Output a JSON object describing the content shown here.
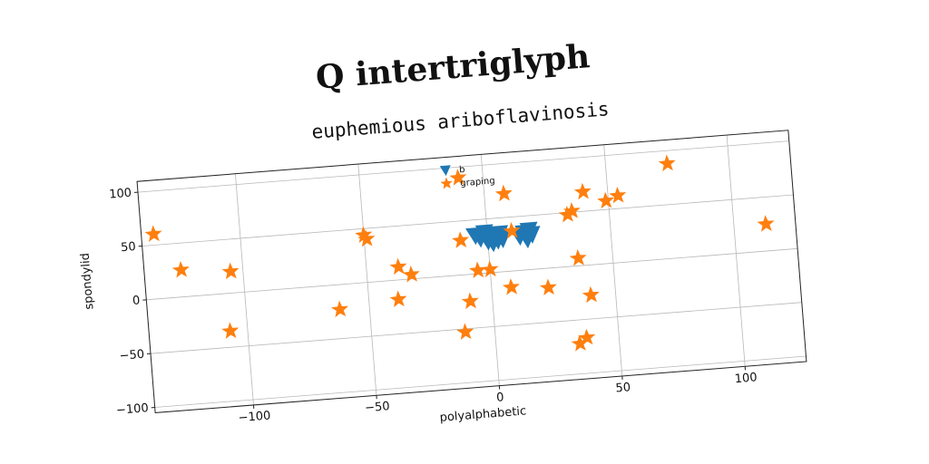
{
  "suptitle": "Q intertriglyph",
  "chart_data": {
    "type": "scatter",
    "title": "euphemious ariboflavinosis",
    "xlabel": "polyalphabetic",
    "ylabel": "spondylid",
    "xlim": [
      -140,
      125
    ],
    "ylim": [
      -105,
      110
    ],
    "xticks": [
      -100,
      -50,
      0,
      50,
      100
    ],
    "yticks": [
      -100,
      -50,
      0,
      50,
      100
    ],
    "grid": true,
    "legend_position": "top-center",
    "series": [
      {
        "name": "b",
        "marker": "triangle-down",
        "color": "#1f77b4",
        "points": [
          [
            -5,
            36
          ],
          [
            -3,
            33
          ],
          [
            -1,
            38
          ],
          [
            0,
            30
          ],
          [
            1,
            35
          ],
          [
            2,
            28
          ],
          [
            3,
            33
          ],
          [
            4,
            30
          ],
          [
            5,
            36
          ],
          [
            6,
            31
          ],
          [
            13,
            32
          ],
          [
            15,
            35
          ],
          [
            16,
            29
          ],
          [
            17,
            37
          ],
          [
            18,
            33
          ]
        ]
      },
      {
        "name": "graping",
        "marker": "star",
        "color": "#ff7f0e",
        "points": [
          [
            -135,
            60
          ],
          [
            -125,
            25
          ],
          [
            -105,
            20
          ],
          [
            -107,
            -35
          ],
          [
            -62,
            -23
          ],
          [
            -50,
            44
          ],
          [
            -49,
            40
          ],
          [
            -37,
            12
          ],
          [
            -32,
            4
          ],
          [
            -38,
            -18
          ],
          [
            -10,
            90
          ],
          [
            -11,
            32
          ],
          [
            -5,
            3
          ],
          [
            0,
            3
          ],
          [
            -9,
            -25
          ],
          [
            -12,
            -53
          ],
          [
            8,
            72
          ],
          [
            10,
            37
          ],
          [
            8,
            -15
          ],
          [
            23,
            -18
          ],
          [
            33,
            48
          ],
          [
            35,
            51
          ],
          [
            40,
            68
          ],
          [
            36,
            7
          ],
          [
            40,
            -28
          ],
          [
            34,
            -72
          ],
          [
            37,
            -67
          ],
          [
            49,
            58
          ],
          [
            54,
            62
          ],
          [
            75,
            88
          ],
          [
            113,
            25
          ]
        ]
      }
    ]
  }
}
